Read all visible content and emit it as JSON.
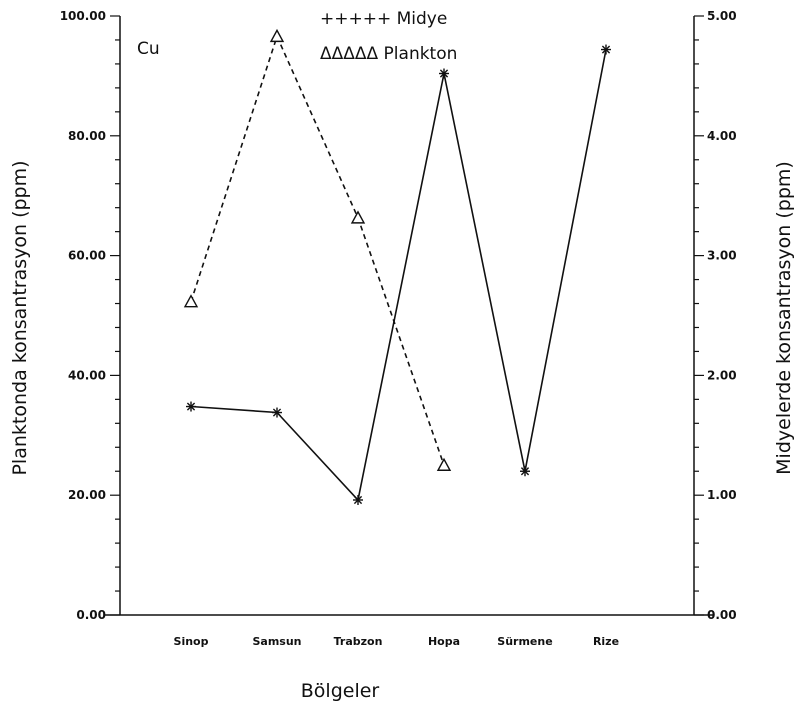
{
  "chart_data": {
    "type": "line",
    "annotation": "Cu",
    "xlabel": "Bölgeler",
    "categories": [
      "Sinop",
      "Samsun",
      "Trabzon",
      "Hopa",
      "Sürmene",
      "Rize"
    ],
    "left_axis": {
      "label": "Planktonda konsantrasyon (ppm)",
      "range": [
        0,
        100
      ],
      "tick_labels": [
        "0.00",
        "20.00",
        "40.00",
        "60.00",
        "80.00",
        "100.00"
      ]
    },
    "right_axis": {
      "label": "Midyelerde konsantrasyon (ppm)",
      "range": [
        0,
        5
      ],
      "tick_labels": [
        "0.00",
        "1.00",
        "2.00",
        "3.00",
        "4.00",
        "5.00"
      ]
    },
    "series": [
      {
        "name": "Midye",
        "legend_label": "+++++ Midye",
        "axis": "right",
        "marker": "asterisk",
        "line_style": "solid",
        "values": [
          1.74,
          1.69,
          0.96,
          4.52,
          1.2,
          4.72
        ]
      },
      {
        "name": "Plankton",
        "legend_label": "ΔΔΔΔΔ Plankton",
        "axis": "left",
        "marker": "triangle",
        "line_style": "dashed",
        "values": [
          52.3,
          96.6,
          66.3,
          25.0,
          null,
          null
        ]
      }
    ],
    "grid": false,
    "legend_position": "top-center"
  }
}
